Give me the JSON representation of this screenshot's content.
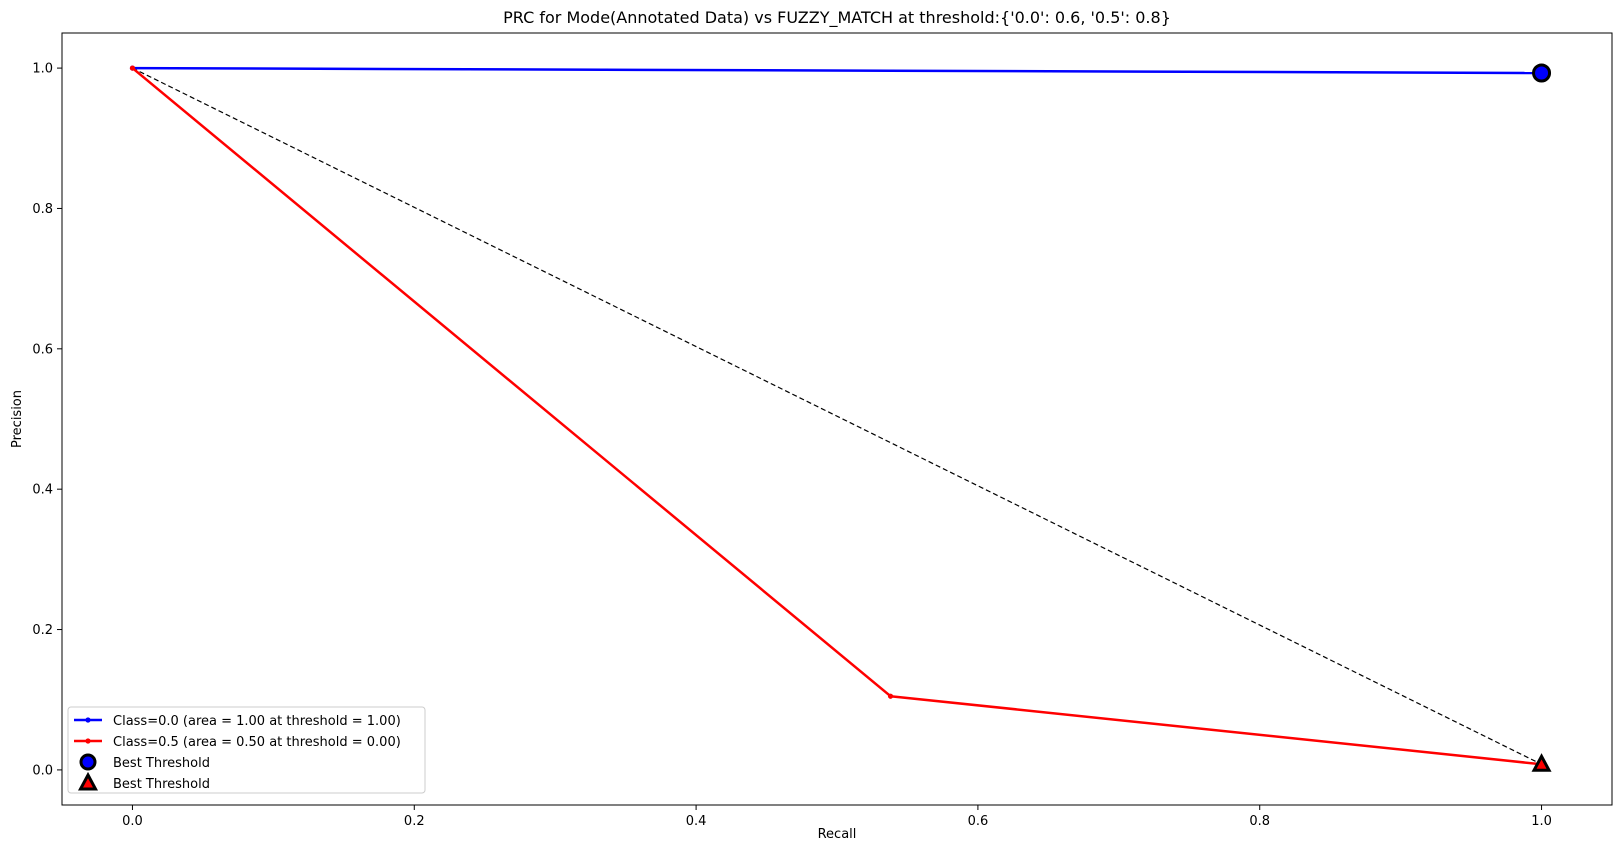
{
  "chart_data": {
    "type": "line",
    "title": "PRC for Mode(Annotated Data) vs FUZZY_MATCH at threshold:{'0.0': 0.6, '0.5': 0.8}",
    "xlabel": "Recall",
    "ylabel": "Precision",
    "xlim": [
      -0.05,
      1.05
    ],
    "ylim": [
      -0.05,
      1.05
    ],
    "xticks": [
      0.0,
      0.2,
      0.4,
      0.6,
      0.8,
      1.0
    ],
    "xtick_labels": [
      "0.0",
      "0.2",
      "0.4",
      "0.6",
      "0.8",
      "1.0"
    ],
    "yticks": [
      0.0,
      0.2,
      0.4,
      0.6,
      0.8,
      1.0
    ],
    "ytick_labels": [
      "0.0",
      "0.2",
      "0.4",
      "0.6",
      "0.8",
      "1.0"
    ],
    "grid": false,
    "legend_position": "lower-left",
    "series": [
      {
        "name": "Class=0.0 (area = 1.00 at threshold = 1.00)",
        "color": "#0000ff",
        "x": [
          0.0,
          1.0
        ],
        "y": [
          1.0,
          0.993
        ]
      },
      {
        "name": "Class=0.5 (area = 0.50 at threshold = 0.00)",
        "color": "#ff0000",
        "x": [
          0.0,
          0.538,
          1.0
        ],
        "y": [
          1.0,
          0.105,
          0.008
        ]
      }
    ],
    "reference_line": {
      "style": "dashed",
      "color": "#000000",
      "x": [
        0.0,
        1.0
      ],
      "y": [
        1.0,
        0.008
      ]
    },
    "markers": [
      {
        "name": "Best Threshold",
        "shape": "circle",
        "fill": "#0000ff",
        "edge": "#000000",
        "x": 1.0,
        "y": 0.993
      },
      {
        "name": "Best Threshold",
        "shape": "triangle",
        "fill": "#ff0000",
        "edge": "#000000",
        "x": 1.0,
        "y": 0.008
      }
    ]
  }
}
